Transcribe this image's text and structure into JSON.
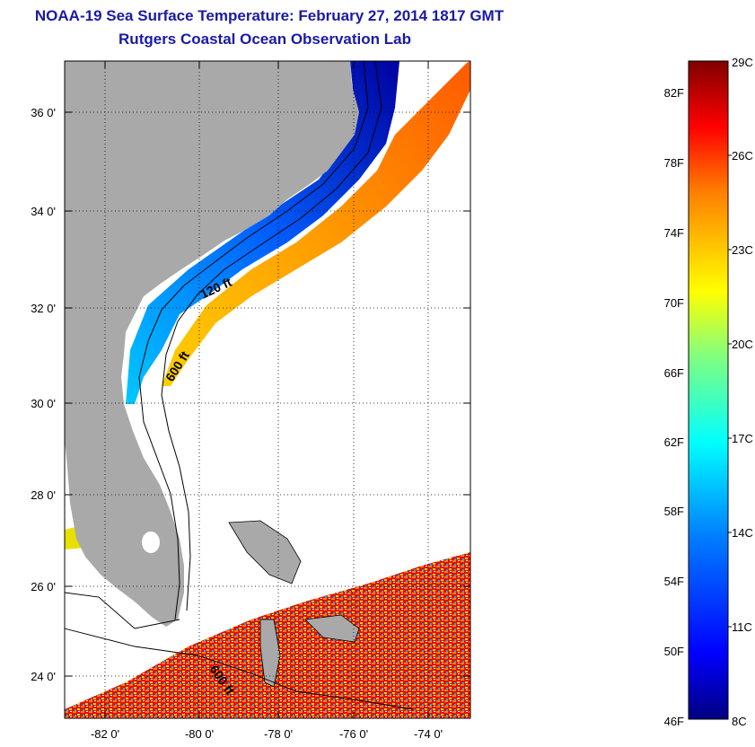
{
  "header": {
    "title": "NOAA-19 Sea Surface Temperature:  February 27, 2014 1817 GMT",
    "subtitle": "Rutgers Coastal Ocean Observation Lab"
  },
  "map": {
    "lat_labels": [
      "36 0'",
      "34 0'",
      "32 0'",
      "30 0'",
      "28 0'",
      "26 0'",
      "24 0'"
    ],
    "lon_labels": [
      "-82 0'",
      "-80 0'",
      "-78 0'",
      "-76 0'",
      "-74 0'"
    ],
    "contour_labels": [
      "120 ft",
      "600 ft",
      "600 ft"
    ],
    "land_color": "#a9a9a9",
    "grid": "dotted"
  },
  "colorbar": {
    "fahrenheit_labels": [
      "82F",
      "78F",
      "74F",
      "70F",
      "66F",
      "62F",
      "58F",
      "54F",
      "50F",
      "46F"
    ],
    "celsius_labels": [
      "29C",
      "26C",
      "23C",
      "20C",
      "17C",
      "14C",
      "11C",
      "8C"
    ],
    "colors": [
      "#000080",
      "#0000ff",
      "#0080ff",
      "#00ffff",
      "#80ff80",
      "#ffff00",
      "#ff8000",
      "#ff0000",
      "#800000"
    ]
  }
}
